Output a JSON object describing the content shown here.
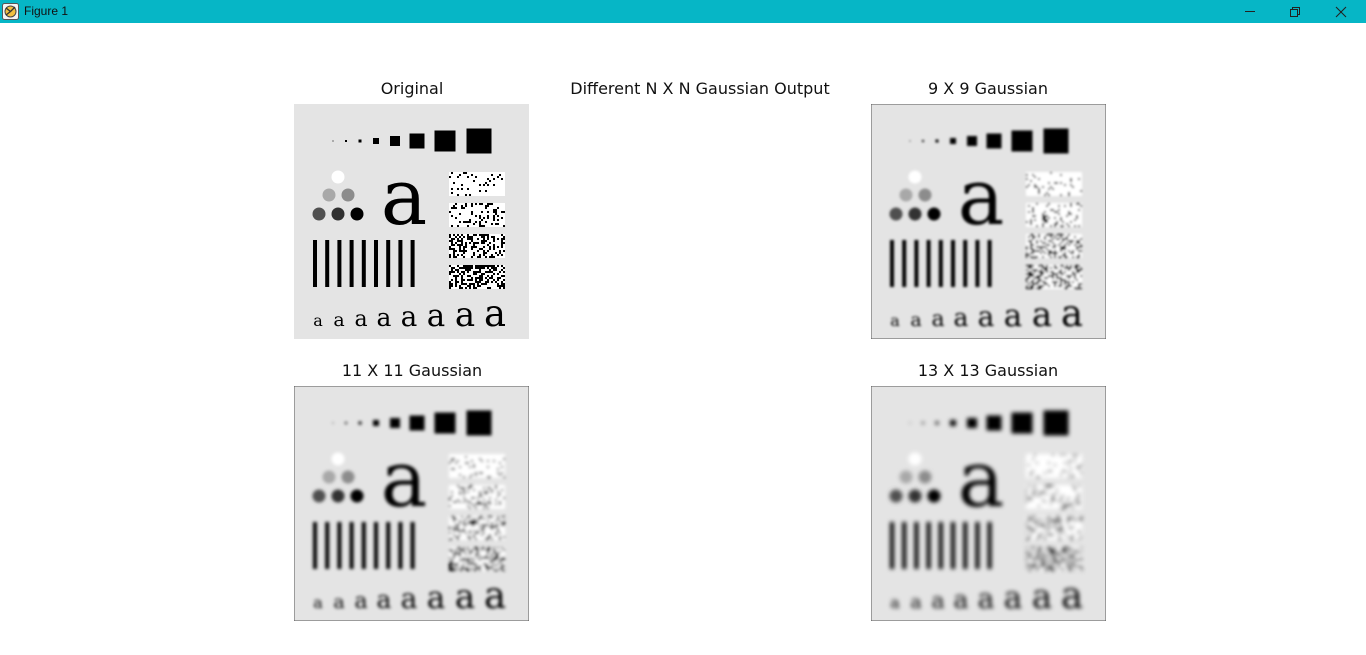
{
  "window": {
    "title": "Figure 1",
    "icons": {
      "app": "matplotlib-figure-icon",
      "minimize": "minimize-icon",
      "restore": "restore-icon",
      "close": "close-icon"
    }
  },
  "figure": {
    "suptitle": "Different N X N Gaussian Output",
    "panels": [
      {
        "title": "Original",
        "blur": 0
      },
      {
        "title": "9 X 9 Gaussian",
        "blur": 1.2
      },
      {
        "title": "11 X 11 Gaussian",
        "blur": 1.6
      },
      {
        "title": "13 X 13 Gaussian",
        "blur": 2.0
      }
    ]
  },
  "colors": {
    "titlebar": "#06b6c6",
    "image_background": "#e4e4e4",
    "ink": "#000000"
  }
}
